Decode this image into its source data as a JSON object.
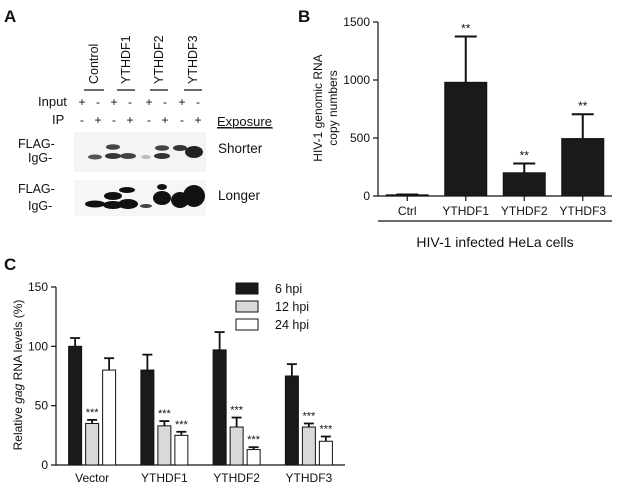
{
  "panels": {
    "A": {
      "label": "A",
      "lanes": [
        "Control",
        "YTHDF1",
        "YTHDF2",
        "YTHDF3"
      ],
      "row_input": "Input",
      "row_ip": "IP",
      "input_signs": [
        "+",
        "-",
        "+",
        "-",
        "+",
        "-",
        "+",
        "-"
      ],
      "ip_signs": [
        "-",
        "+",
        "-",
        "+",
        "-",
        "+",
        "-",
        "+"
      ],
      "exposure_label": "Exposure",
      "blot_rows": [
        {
          "marker_top": "FLAG-",
          "marker_bottom": "IgG-",
          "exposure": "Shorter"
        },
        {
          "marker_top": "FLAG-",
          "marker_bottom": "IgG-",
          "exposure": "Longer"
        }
      ]
    },
    "B": {
      "label": "B"
    },
    "C": {
      "label": "C"
    }
  },
  "chart_data": [
    {
      "id": "B",
      "type": "bar",
      "categories": [
        "Ctrl",
        "YTHDF1",
        "YTHDF2",
        "YTHDF3"
      ],
      "values": [
        10,
        980,
        200,
        495
      ],
      "errors": [
        3,
        395,
        80,
        210
      ],
      "significance": [
        "",
        "**",
        "**",
        "**"
      ],
      "ylabel_line1": "HIV-1 genomic RNA",
      "ylabel_line2": "copy numbers",
      "ylim": [
        0,
        1500
      ],
      "yticks": [
        0,
        500,
        1000,
        1500
      ],
      "group_label": "HIV-1 infected HeLa cells",
      "bar_color": "#1a1a1a"
    },
    {
      "id": "C",
      "type": "bar",
      "categories": [
        "Vector",
        "YTHDF1",
        "YTHDF2",
        "YTHDF3"
      ],
      "series": [
        {
          "name": "6 hpi",
          "values": [
            100,
            80,
            97,
            75
          ],
          "errors": [
            7,
            13,
            15,
            10
          ],
          "significance": [
            "",
            "",
            "",
            ""
          ],
          "color": "#1a1a1a"
        },
        {
          "name": "12 hpi",
          "values": [
            35,
            33,
            32,
            32
          ],
          "errors": [
            3,
            4,
            8,
            3
          ],
          "significance": [
            "***",
            "***",
            "***",
            "***"
          ],
          "color": "#d9d9d9"
        },
        {
          "name": "24 hpi",
          "values": [
            80,
            25,
            13,
            20
          ],
          "errors": [
            10,
            3,
            2,
            4
          ],
          "significance": [
            "",
            "***",
            "***",
            "***"
          ],
          "color": "#ffffff"
        }
      ],
      "ylabel_prefix": "Relative ",
      "ylabel_italic": "gag",
      "ylabel_suffix": " RNA levels (%)",
      "ylim": [
        0,
        150
      ],
      "yticks": [
        0,
        50,
        100,
        150
      ],
      "legend_position": "top-right"
    }
  ]
}
